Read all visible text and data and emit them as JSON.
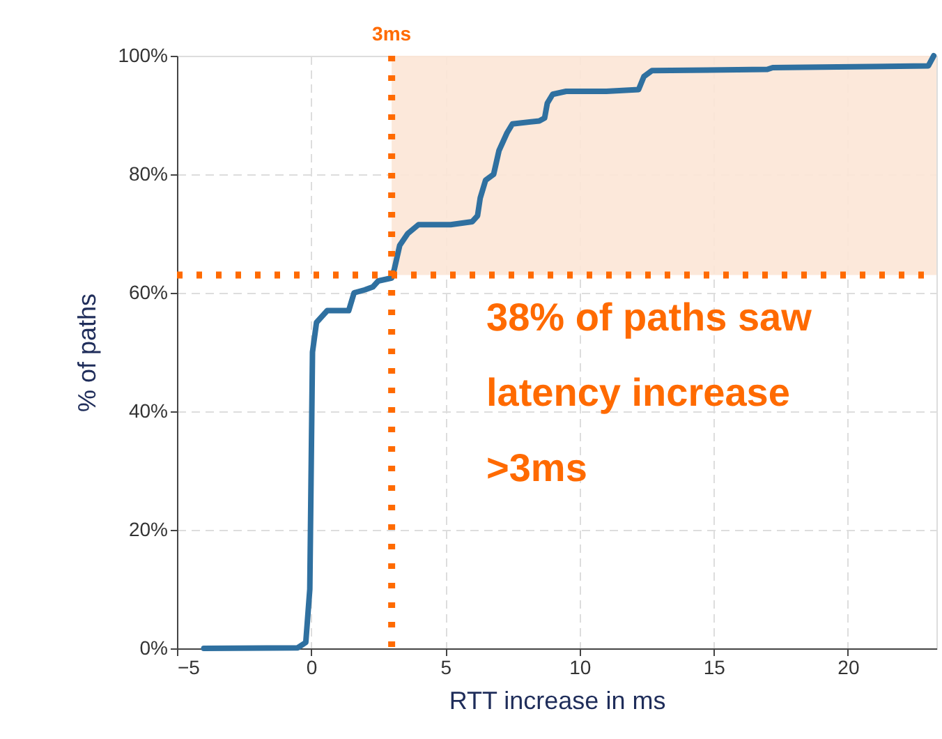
{
  "chart_data": {
    "type": "line",
    "xlabel": "RTT increase in ms",
    "ylabel": "% of paths",
    "x": [
      -4,
      -0.5,
      -0.2,
      -0.05,
      0,
      0.05,
      0.2,
      0.6,
      1.4,
      1.6,
      2,
      2.3,
      2.5,
      3,
      3.1,
      3.3,
      3.6,
      4,
      5.2,
      6,
      6.2,
      6.3,
      6.5,
      6.8,
      7.0,
      7.3,
      7.5,
      8.5,
      8.7,
      8.8,
      9,
      9.5,
      11,
      12.2,
      12.4,
      12.7,
      17,
      17.2,
      23,
      23.2
    ],
    "series": [
      {
        "color": "#2f70a0",
        "values": [
          0,
          0.1,
          1,
          10,
          30,
          50,
          55,
          57,
          57,
          60,
          60.5,
          61,
          62,
          62.5,
          64,
          68,
          70,
          71.5,
          71.5,
          72,
          73,
          76,
          79,
          80,
          84,
          87,
          88.5,
          89,
          89.5,
          92,
          93.5,
          94,
          94,
          94.3,
          96.5,
          97.5,
          97.7,
          98,
          98.3,
          100
        ]
      }
    ],
    "xlim": [
      -5,
      23.3
    ],
    "xticks": [
      {
        "value": -5,
        "label": "−5"
      },
      0,
      5,
      10,
      15,
      20
    ],
    "ylim": [
      0,
      100
    ],
    "yticks": [
      {
        "value": 0,
        "label": "0%"
      },
      {
        "value": 20,
        "label": "20%"
      },
      {
        "value": 40,
        "label": "40%"
      },
      {
        "value": 60,
        "label": "60%"
      },
      {
        "value": 80,
        "label": "80%"
      },
      {
        "value": 100,
        "label": "100%"
      }
    ],
    "grid": true,
    "line_style": "solid",
    "marker": "none",
    "ref_lines": [
      {
        "axis": "x",
        "value": 3,
        "label": "3ms",
        "color": "#ff6a00",
        "line_style": "dotted"
      },
      {
        "axis": "y",
        "value": 63,
        "label": null,
        "color": "#ff6a00",
        "line_style": "dotted"
      }
    ],
    "bands": [
      {
        "axis": "y",
        "from": 63,
        "to": 100,
        "label": null,
        "color": "#fce6d6"
      }
    ],
    "annotations": [
      "38% of paths saw\nlatency increase\n>3ms"
    ]
  }
}
